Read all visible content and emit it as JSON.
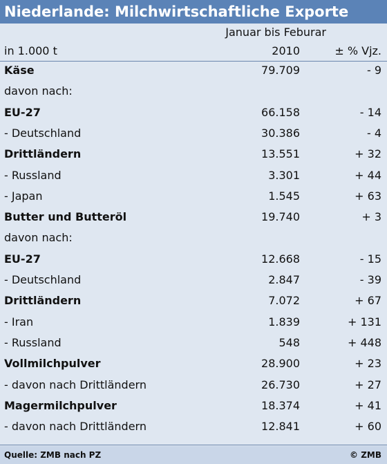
{
  "title": "Niederlande: Milchwirtschaftliche Exporte",
  "header": {
    "period": "Januar bis Feburar",
    "unit": "in 1.000 t",
    "year": "2010",
    "change": "± % Vjz."
  },
  "rows": [
    {
      "label": "Käse",
      "value": "79.709",
      "pct": "- 9",
      "bold": true
    },
    {
      "label": "davon nach:",
      "value": "",
      "pct": "",
      "bold": false
    },
    {
      "label": "EU-27",
      "value": "66.158",
      "pct": "- 14",
      "bold": true
    },
    {
      "label": "- Deutschland",
      "value": "30.386",
      "pct": "- 4",
      "bold": false
    },
    {
      "label": "Drittländern",
      "value": "13.551",
      "pct": "+ 32",
      "bold": true
    },
    {
      "label": "- Russland",
      "value": "3.301",
      "pct": "+ 44",
      "bold": false
    },
    {
      "label": "- Japan",
      "value": "1.545",
      "pct": "+ 63",
      "bold": false
    },
    {
      "label": "Butter und Butteröl",
      "value": "19.740",
      "pct": "+ 3",
      "bold": true
    },
    {
      "label": "davon nach:",
      "value": "",
      "pct": "",
      "bold": false
    },
    {
      "label": "EU-27",
      "value": "12.668",
      "pct": "- 15",
      "bold": true
    },
    {
      "label": "- Deutschland",
      "value": "2.847",
      "pct": "- 39",
      "bold": false
    },
    {
      "label": "Drittländern",
      "value": "7.072",
      "pct": "+ 67",
      "bold": true
    },
    {
      "label": "- Iran",
      "value": "1.839",
      "pct": "+ 131",
      "bold": false
    },
    {
      "label": "- Russland",
      "value": "548",
      "pct": "+ 448",
      "bold": false
    },
    {
      "label": "Vollmilchpulver",
      "value": "28.900",
      "pct": "+ 23",
      "bold": true
    },
    {
      "label": "- davon nach Drittländern",
      "value": "26.730",
      "pct": "+ 27",
      "bold": false
    },
    {
      "label": "Magermilchpulver",
      "value": "18.374",
      "pct": "+ 41",
      "bold": true
    },
    {
      "label": "- davon nach Drittländern",
      "value": "12.841",
      "pct": "+ 60",
      "bold": false
    }
  ],
  "footer": {
    "source": "Quelle: ZMB nach PZ",
    "copyright": "© ZMB"
  },
  "colors": {
    "title_bar": "#5b83b7",
    "background": "#dfe7f1",
    "footer_bar": "#c9d6e8"
  }
}
